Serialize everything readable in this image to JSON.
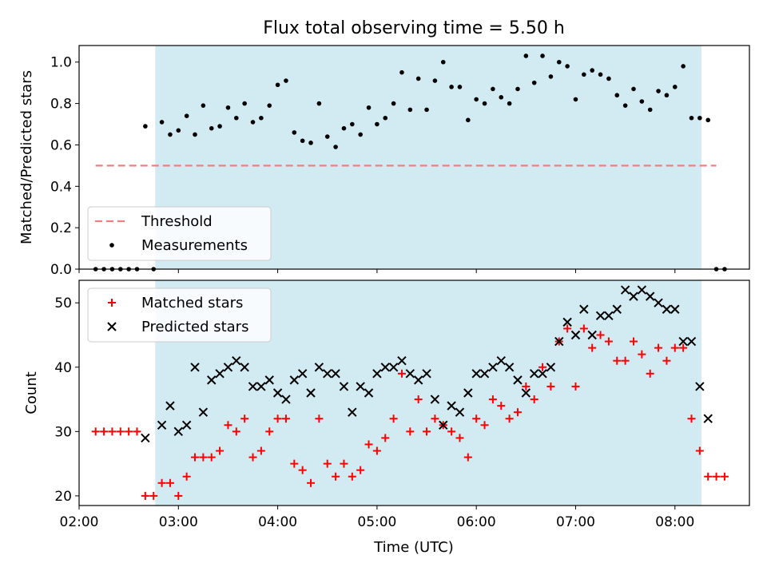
{
  "chart_data": {
    "type": "scatter",
    "title": "Flux total observing time = 5.50 h",
    "xlabel": "Time (UTC)",
    "x_unit": "hours",
    "xlim": [
      "02:00",
      "08:45"
    ],
    "x_ticks": [
      "02:00",
      "03:00",
      "04:00",
      "05:00",
      "06:00",
      "07:00",
      "08:00"
    ],
    "observing_window": {
      "start": "02:46",
      "end": "08:16",
      "color": "#add8e6"
    },
    "panels": [
      {
        "ylabel": "Matched/Predicted stars",
        "ylim": [
          0,
          1.08
        ],
        "y_ticks": [
          "0.0",
          "0.2",
          "0.4",
          "0.6",
          "0.8",
          "1.0"
        ],
        "legend": {
          "position": "lower left",
          "entries": [
            "Threshold",
            "Measurements"
          ]
        },
        "threshold": {
          "name": "Threshold",
          "value": 0.5,
          "x_start": "02:10",
          "x_end": "08:25",
          "color": "#f08080",
          "style": "dashed"
        },
        "series": [
          {
            "name": "Measurements",
            "marker": "dot",
            "color": "#000000",
            "points": [
              [
                "02:10",
                0.0
              ],
              [
                "02:15",
                0.0
              ],
              [
                "02:20",
                0.0
              ],
              [
                "02:25",
                0.0
              ],
              [
                "02:30",
                0.0
              ],
              [
                "02:35",
                0.0
              ],
              [
                "02:40",
                0.69
              ],
              [
                "02:45",
                0.0
              ],
              [
                "02:50",
                0.71
              ],
              [
                "02:55",
                0.65
              ],
              [
                "03:00",
                0.67
              ],
              [
                "03:05",
                0.74
              ],
              [
                "03:10",
                0.65
              ],
              [
                "03:15",
                0.79
              ],
              [
                "03:20",
                0.68
              ],
              [
                "03:25",
                0.69
              ],
              [
                "03:30",
                0.78
              ],
              [
                "03:35",
                0.73
              ],
              [
                "03:40",
                0.8
              ],
              [
                "03:45",
                0.71
              ],
              [
                "03:50",
                0.73
              ],
              [
                "03:55",
                0.79
              ],
              [
                "04:00",
                0.89
              ],
              [
                "04:05",
                0.91
              ],
              [
                "04:10",
                0.66
              ],
              [
                "04:15",
                0.62
              ],
              [
                "04:20",
                0.61
              ],
              [
                "04:25",
                0.8
              ],
              [
                "04:30",
                0.64
              ],
              [
                "04:35",
                0.59
              ],
              [
                "04:40",
                0.68
              ],
              [
                "04:45",
                0.7
              ],
              [
                "04:50",
                0.65
              ],
              [
                "04:55",
                0.78
              ],
              [
                "05:00",
                0.7
              ],
              [
                "05:05",
                0.73
              ],
              [
                "05:10",
                0.8
              ],
              [
                "05:15",
                0.95
              ],
              [
                "05:20",
                0.77
              ],
              [
                "05:25",
                0.92
              ],
              [
                "05:30",
                0.77
              ],
              [
                "05:35",
                0.91
              ],
              [
                "05:40",
                1.0
              ],
              [
                "05:45",
                0.88
              ],
              [
                "05:50",
                0.88
              ],
              [
                "05:55",
                0.72
              ],
              [
                "06:00",
                0.82
              ],
              [
                "06:05",
                0.8
              ],
              [
                "06:10",
                0.87
              ],
              [
                "06:15",
                0.83
              ],
              [
                "06:20",
                0.8
              ],
              [
                "06:25",
                0.87
              ],
              [
                "06:30",
                1.03
              ],
              [
                "06:35",
                0.9
              ],
              [
                "06:40",
                1.03
              ],
              [
                "06:45",
                0.93
              ],
              [
                "06:50",
                1.0
              ],
              [
                "06:55",
                0.98
              ],
              [
                "07:00",
                0.82
              ],
              [
                "07:05",
                0.94
              ],
              [
                "07:10",
                0.96
              ],
              [
                "07:15",
                0.94
              ],
              [
                "07:20",
                0.92
              ],
              [
                "07:25",
                0.84
              ],
              [
                "07:30",
                0.79
              ],
              [
                "07:35",
                0.87
              ],
              [
                "07:40",
                0.81
              ],
              [
                "07:45",
                0.77
              ],
              [
                "07:50",
                0.86
              ],
              [
                "07:55",
                0.84
              ],
              [
                "08:00",
                0.88
              ],
              [
                "08:05",
                0.98
              ],
              [
                "08:10",
                0.73
              ],
              [
                "08:15",
                0.73
              ],
              [
                "08:20",
                0.72
              ],
              [
                "08:25",
                0.0
              ],
              [
                "08:30",
                0.0
              ]
            ]
          }
        ]
      },
      {
        "ylabel": "Count",
        "ylim": [
          18.5,
          53.5
        ],
        "y_ticks": [
          "20",
          "30",
          "40",
          "50"
        ],
        "legend": {
          "position": "upper left",
          "entries": [
            "Matched stars",
            "Predicted stars"
          ]
        },
        "series": [
          {
            "name": "Matched stars",
            "marker": "plus",
            "color": "#ff0000",
            "points": [
              [
                "02:10",
                30
              ],
              [
                "02:15",
                30
              ],
              [
                "02:20",
                30
              ],
              [
                "02:25",
                30
              ],
              [
                "02:30",
                30
              ],
              [
                "02:35",
                30
              ],
              [
                "02:40",
                20
              ],
              [
                "02:45",
                20
              ],
              [
                "02:50",
                22
              ],
              [
                "02:55",
                22
              ],
              [
                "03:00",
                20
              ],
              [
                "03:05",
                23
              ],
              [
                "03:10",
                26
              ],
              [
                "03:15",
                26
              ],
              [
                "03:20",
                26
              ],
              [
                "03:25",
                27
              ],
              [
                "03:30",
                31
              ],
              [
                "03:35",
                30
              ],
              [
                "03:40",
                32
              ],
              [
                "03:45",
                26
              ],
              [
                "03:50",
                27
              ],
              [
                "03:55",
                30
              ],
              [
                "04:00",
                32
              ],
              [
                "04:05",
                32
              ],
              [
                "04:10",
                25
              ],
              [
                "04:15",
                24
              ],
              [
                "04:20",
                22
              ],
              [
                "04:25",
                32
              ],
              [
                "04:30",
                25
              ],
              [
                "04:35",
                23
              ],
              [
                "04:40",
                25
              ],
              [
                "04:45",
                23
              ],
              [
                "04:50",
                24
              ],
              [
                "04:55",
                28
              ],
              [
                "05:00",
                27
              ],
              [
                "05:05",
                29
              ],
              [
                "05:10",
                32
              ],
              [
                "05:15",
                39
              ],
              [
                "05:20",
                30
              ],
              [
                "05:25",
                35
              ],
              [
                "05:30",
                30
              ],
              [
                "05:35",
                32
              ],
              [
                "05:40",
                31
              ],
              [
                "05:45",
                30
              ],
              [
                "05:50",
                29
              ],
              [
                "05:55",
                26
              ],
              [
                "06:00",
                32
              ],
              [
                "06:05",
                31
              ],
              [
                "06:10",
                35
              ],
              [
                "06:15",
                34
              ],
              [
                "06:20",
                32
              ],
              [
                "06:25",
                33
              ],
              [
                "06:30",
                37
              ],
              [
                "06:35",
                35
              ],
              [
                "06:40",
                40
              ],
              [
                "06:45",
                37
              ],
              [
                "06:50",
                44
              ],
              [
                "06:55",
                46
              ],
              [
                "07:00",
                37
              ],
              [
                "07:05",
                46
              ],
              [
                "07:10",
                43
              ],
              [
                "07:15",
                45
              ],
              [
                "07:20",
                44
              ],
              [
                "07:25",
                41
              ],
              [
                "07:30",
                41
              ],
              [
                "07:35",
                44
              ],
              [
                "07:40",
                42
              ],
              [
                "07:45",
                39
              ],
              [
                "07:50",
                43
              ],
              [
                "07:55",
                41
              ],
              [
                "08:00",
                43
              ],
              [
                "08:05",
                43
              ],
              [
                "08:10",
                32
              ],
              [
                "08:15",
                27
              ],
              [
                "08:20",
                23
              ],
              [
                "08:25",
                23
              ],
              [
                "08:30",
                23
              ]
            ]
          },
          {
            "name": "Predicted stars",
            "marker": "x",
            "color": "#000000",
            "points": [
              [
                "02:40",
                29
              ],
              [
                "02:50",
                31
              ],
              [
                "02:55",
                34
              ],
              [
                "03:00",
                30
              ],
              [
                "03:05",
                31
              ],
              [
                "03:10",
                40
              ],
              [
                "03:15",
                33
              ],
              [
                "03:20",
                38
              ],
              [
                "03:25",
                39
              ],
              [
                "03:30",
                40
              ],
              [
                "03:35",
                41
              ],
              [
                "03:40",
                40
              ],
              [
                "03:45",
                37
              ],
              [
                "03:50",
                37
              ],
              [
                "03:55",
                38
              ],
              [
                "04:00",
                36
              ],
              [
                "04:05",
                35
              ],
              [
                "04:10",
                38
              ],
              [
                "04:15",
                39
              ],
              [
                "04:20",
                36
              ],
              [
                "04:25",
                40
              ],
              [
                "04:30",
                39
              ],
              [
                "04:35",
                39
              ],
              [
                "04:40",
                37
              ],
              [
                "04:45",
                33
              ],
              [
                "04:50",
                37
              ],
              [
                "04:55",
                36
              ],
              [
                "05:00",
                39
              ],
              [
                "05:05",
                40
              ],
              [
                "05:10",
                40
              ],
              [
                "05:15",
                41
              ],
              [
                "05:20",
                39
              ],
              [
                "05:25",
                38
              ],
              [
                "05:30",
                39
              ],
              [
                "05:35",
                35
              ],
              [
                "05:40",
                31
              ],
              [
                "05:45",
                34
              ],
              [
                "05:50",
                33
              ],
              [
                "05:55",
                36
              ],
              [
                "06:00",
                39
              ],
              [
                "06:05",
                39
              ],
              [
                "06:10",
                40
              ],
              [
                "06:15",
                41
              ],
              [
                "06:20",
                40
              ],
              [
                "06:25",
                38
              ],
              [
                "06:30",
                36
              ],
              [
                "06:35",
                39
              ],
              [
                "06:40",
                39
              ],
              [
                "06:45",
                40
              ],
              [
                "06:50",
                44
              ],
              [
                "06:55",
                47
              ],
              [
                "07:00",
                45
              ],
              [
                "07:05",
                49
              ],
              [
                "07:10",
                45
              ],
              [
                "07:15",
                48
              ],
              [
                "07:20",
                48
              ],
              [
                "07:25",
                49
              ],
              [
                "07:30",
                52
              ],
              [
                "07:35",
                51
              ],
              [
                "07:40",
                52
              ],
              [
                "07:45",
                51
              ],
              [
                "07:50",
                50
              ],
              [
                "07:55",
                49
              ],
              [
                "08:00",
                49
              ],
              [
                "08:05",
                44
              ],
              [
                "08:10",
                44
              ],
              [
                "08:15",
                37
              ],
              [
                "08:20",
                32
              ]
            ]
          }
        ]
      }
    ]
  }
}
